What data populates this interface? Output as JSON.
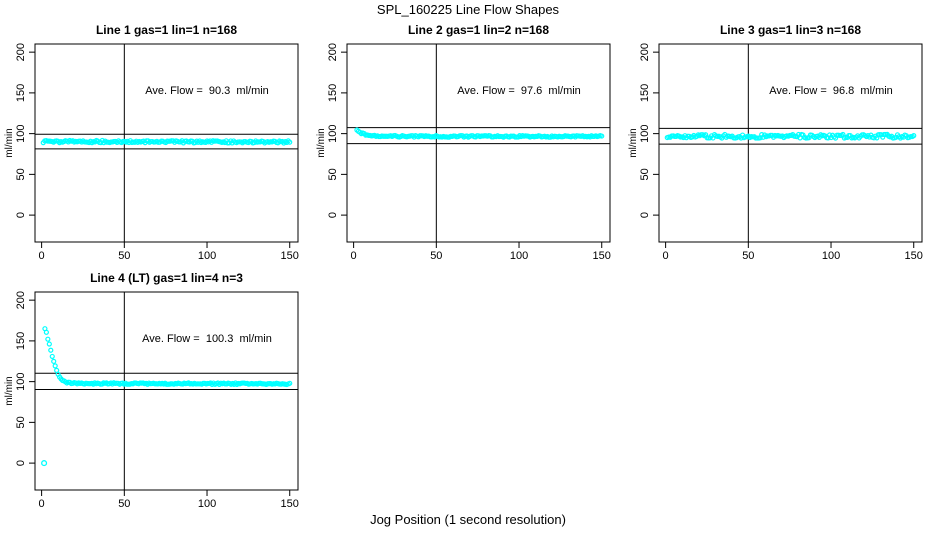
{
  "chart_data": {
    "type": "scatter",
    "suptitle": "SPL_160225  Line Flow Shapes",
    "xlabel": "Jog Position (1 second resolution)",
    "ylabel": "ml/min",
    "xlim": [
      -4,
      155
    ],
    "ylim": [
      -33,
      210
    ],
    "xticks": [
      0,
      50,
      100,
      150
    ],
    "yticks": [
      0,
      50,
      100,
      150,
      200
    ],
    "marker_color": "#00FFFF",
    "axis_color": "#000000",
    "vline_x": 50,
    "n_points": 168,
    "panels": [
      {
        "title": "Line 1 gas=1 lin=1 n=168",
        "annotation": "Ave. Flow =  90.3  ml/min",
        "ave_flow": 90.3,
        "ref_lines": [
          99.3,
          81.3
        ],
        "x_start": 1,
        "x_end": 150,
        "profile": [
          [
            1,
            90.3
          ],
          [
            150,
            89.8
          ]
        ],
        "jitter": 1.4,
        "outliers": []
      },
      {
        "title": "Line 2 gas=1 lin=2 n=168",
        "annotation": "Ave. Flow =  97.6  ml/min",
        "ave_flow": 97.6,
        "ref_lines": [
          107.4,
          87.8
        ],
        "x_start": 2,
        "x_end": 150,
        "profile": [
          [
            2,
            104
          ],
          [
            4,
            101.5
          ],
          [
            6,
            99.8
          ],
          [
            8,
            98.6
          ],
          [
            11,
            97.6
          ],
          [
            15,
            97.0
          ],
          [
            20,
            96.7
          ],
          [
            150,
            96.6
          ]
        ],
        "jitter": 1.0,
        "outliers": []
      },
      {
        "title": "Line 3 gas=1 lin=3 n=168",
        "annotation": "Ave. Flow =  96.8  ml/min",
        "ave_flow": 96.8,
        "ref_lines": [
          106.5,
          87.1
        ],
        "x_start": 1,
        "x_end": 150,
        "profile": [
          [
            1,
            96.8
          ],
          [
            150,
            96.8
          ]
        ],
        "jitter": 2.3,
        "outliers": []
      },
      {
        "title": "Line 4 (LT) gas=1 lin=4 n=3",
        "annotation": "Ave. Flow =  100.3  ml/min",
        "ave_flow": 100.3,
        "ref_lines": [
          110.3,
          90.3
        ],
        "x_start": 2,
        "x_end": 150,
        "profile": [
          [
            2,
            165
          ],
          [
            3,
            159
          ],
          [
            4,
            151
          ],
          [
            5,
            143
          ],
          [
            6,
            135
          ],
          [
            7,
            127
          ],
          [
            8,
            120
          ],
          [
            9,
            114
          ],
          [
            10,
            109
          ],
          [
            11,
            105
          ],
          [
            12,
            102.5
          ],
          [
            13,
            101
          ],
          [
            14,
            100
          ],
          [
            16,
            98.8
          ],
          [
            18,
            98.2
          ],
          [
            22,
            97.8
          ],
          [
            150,
            97.3
          ]
        ],
        "jitter": 0.9,
        "outliers": [
          [
            1.5,
            0
          ]
        ]
      }
    ]
  }
}
